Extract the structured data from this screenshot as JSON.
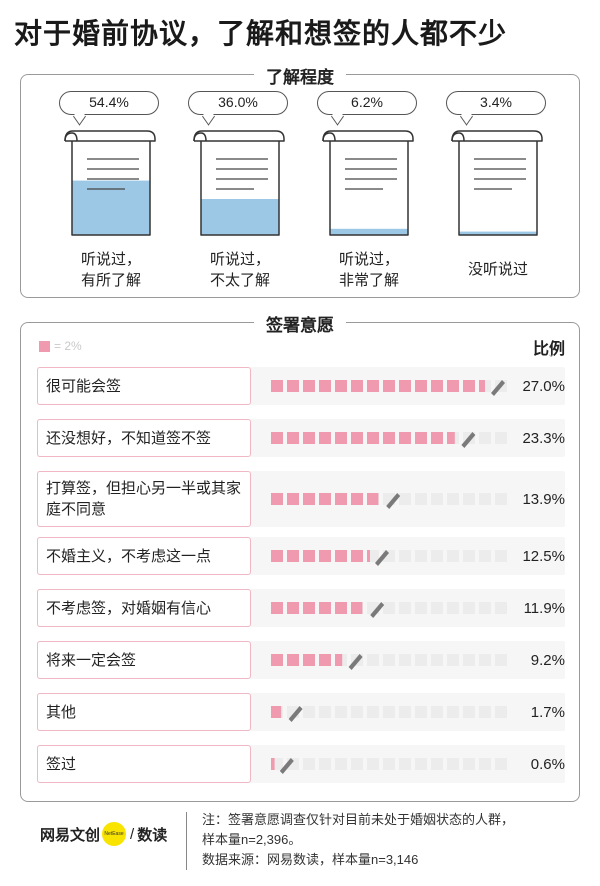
{
  "title": "对于婚前协议，了解和想签的人都不少",
  "awareness": {
    "heading": "了解程度",
    "items": [
      {
        "value": "54.4%",
        "fill": 0.544,
        "label_lines": [
          "听说过，",
          "有所了解"
        ]
      },
      {
        "value": "36.0%",
        "fill": 0.36,
        "label_lines": [
          "听说过，",
          "不太了解"
        ]
      },
      {
        "value": "6.2%",
        "fill": 0.062,
        "label_lines": [
          "听说过，",
          "非常了解"
        ]
      },
      {
        "value": "3.4%",
        "fill": 0.034,
        "label_lines": [
          "没听说过"
        ]
      }
    ]
  },
  "willingness": {
    "heading": "签署意愿",
    "legend": "= 2%",
    "column_header": "比例",
    "rows": [
      {
        "label": "很可能会签",
        "value": "27.0%",
        "num": 27.0
      },
      {
        "label": "还没想好，不知道签不签",
        "value": "23.3%",
        "num": 23.3
      },
      {
        "label": "打算签，但担心另一半或其家庭不同意",
        "value": "13.9%",
        "num": 13.9
      },
      {
        "label": "不婚主义，不考虑这一点",
        "value": "12.5%",
        "num": 12.5
      },
      {
        "label": "不考虑签，对婚姻有信心",
        "value": "11.9%",
        "num": 11.9
      },
      {
        "label": "将来一定会签",
        "value": "9.2%",
        "num": 9.2
      },
      {
        "label": "其他",
        "value": "1.7%",
        "num": 1.7
      },
      {
        "label": "签过",
        "value": "0.6%",
        "num": 0.6
      }
    ]
  },
  "chart_data": [
    {
      "type": "bar",
      "title": "了解程度",
      "categories": [
        "听说过，有所了解",
        "听说过，不太了解",
        "听说过，非常了解",
        "没听说过"
      ],
      "values": [
        54.4,
        36.0,
        6.2,
        3.4
      ],
      "unit": "%"
    },
    {
      "type": "bar",
      "title": "签署意愿",
      "categories": [
        "很可能会签",
        "还没想好，不知道签不签",
        "打算签，但担心另一半或其家庭不同意",
        "不婚主义，不考虑这一点",
        "不考虑签，对婚姻有信心",
        "将来一定会签",
        "其他",
        "签过"
      ],
      "values": [
        27.0,
        23.3,
        13.9,
        12.5,
        11.9,
        9.2,
        1.7,
        0.6
      ],
      "unit": "%",
      "legend": "= 2%"
    }
  ],
  "colors": {
    "fill_blue": "#9cc8e6",
    "bar_pink": "#ef9aae",
    "label_border": "#f0b7c4",
    "pencil": "#7a7a7a",
    "logo_yellow": "#f9e400"
  },
  "footer": {
    "brand_left": "网易文创",
    "brand_dot_text": "NetEase",
    "brand_sep": "/",
    "brand_right": "数读",
    "note_lines": [
      "注：签署意愿调查仅针对目前未处于婚姻状态的人群，",
      "样本量n=2,396。",
      "数据来源：网易数读，样本量n=3,146"
    ]
  }
}
